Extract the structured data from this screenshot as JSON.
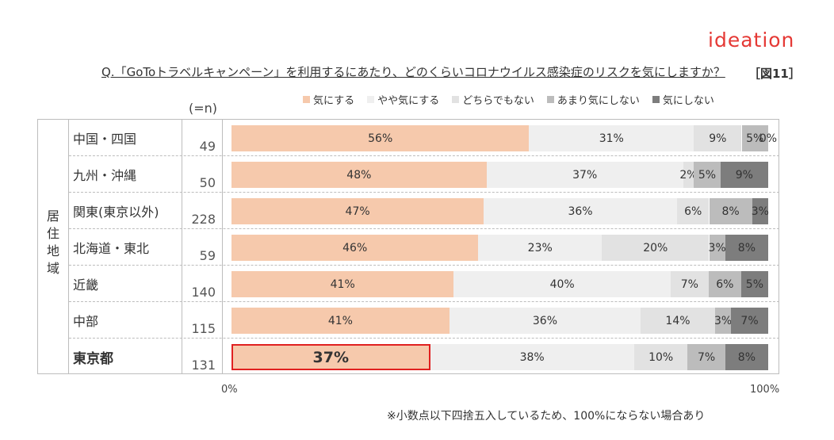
{
  "logo_text": "ideation",
  "question": "Q.「GoToトラベルキャンペーン」を利用するにあたり、どのくらいコロナウイルス感染症のリスクを気にしますか？",
  "figure_label": "［図11］",
  "n_header": "(=n)",
  "group_label": "居住地域",
  "note": "※小数点以下四捨五入しているため、100%にならない場合あり",
  "colors": {
    "s1": "#f6c9ac",
    "s2": "#efefef",
    "s3": "#e2e2e2",
    "s4": "#bcbcbc",
    "s5": "#7d7d7d",
    "highlight": "#e02020"
  },
  "chart_data": {
    "type": "bar",
    "stacked": true,
    "orientation": "horizontal",
    "percent_scale": true,
    "x_ticks": [
      "0%",
      "100%"
    ],
    "xlim": [
      0,
      100
    ],
    "legend_position": "top",
    "legend": [
      "気にする",
      "やや気にする",
      "どちらでもない",
      "あまり気にしない",
      "気にしない"
    ],
    "categories": [
      "中国・四国",
      "九州・沖縄",
      "関東(東京以外)",
      "北海道・東北",
      "近畿",
      "中部",
      "東京都"
    ],
    "n": [
      49,
      50,
      228,
      59,
      140,
      115,
      131
    ],
    "highlight_category": "東京都",
    "series": [
      {
        "name": "気にする",
        "values": [
          56,
          48,
          47,
          46,
          41,
          41,
          37
        ],
        "labels": [
          "56%",
          "48%",
          "47%",
          "46%",
          "41%",
          "41%",
          "37%"
        ]
      },
      {
        "name": "やや気にする",
        "values": [
          31,
          37,
          36,
          23,
          40,
          36,
          38
        ],
        "labels": [
          "31%",
          "37%",
          "36%",
          "23%",
          "40%",
          "36%",
          "38%"
        ]
      },
      {
        "name": "どちらでもない",
        "values": [
          9,
          2,
          6,
          20,
          7,
          14,
          10
        ],
        "labels": [
          "9%",
          "2%",
          "6%",
          "20%",
          "7%",
          "14%",
          "10%"
        ]
      },
      {
        "name": "あまり気にしない",
        "values": [
          5,
          5,
          8,
          3,
          6,
          3,
          7
        ],
        "labels": [
          "5%",
          "5%",
          "8%",
          "3%",
          "6%",
          "3%",
          "7%"
        ]
      },
      {
        "name": "気にしない",
        "values": [
          0,
          9,
          3,
          8,
          5,
          7,
          8
        ],
        "labels": [
          "0%",
          "9%",
          "3%",
          "8%",
          "5%",
          "7%",
          "8%"
        ]
      }
    ]
  }
}
